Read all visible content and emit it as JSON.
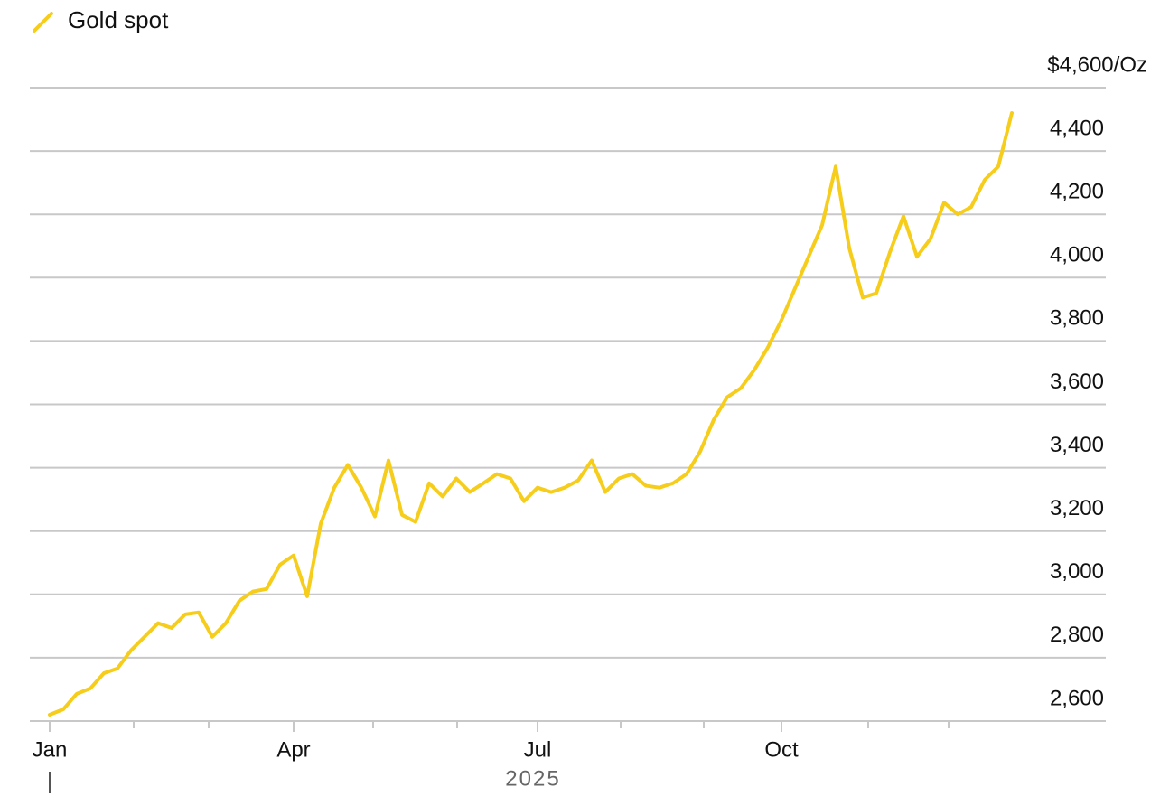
{
  "chart_data": {
    "type": "line",
    "categories": [
      "Jan",
      null,
      null,
      null,
      null,
      null,
      null,
      null,
      null,
      null,
      null,
      null,
      null,
      null,
      null,
      null,
      null,
      null,
      "Apr",
      null,
      null,
      null,
      null,
      null,
      null,
      null,
      null,
      null,
      null,
      null,
      null,
      null,
      null,
      null,
      null,
      null,
      "Jul",
      null,
      null,
      null,
      null,
      null,
      null,
      null,
      null,
      null,
      null,
      null,
      null,
      null,
      null,
      null,
      null,
      null,
      "Oct",
      null,
      null,
      null,
      null,
      null,
      null,
      null,
      null,
      null,
      null,
      null,
      null,
      null,
      null,
      null,
      null,
      null
    ],
    "x_label": "2025",
    "series": [
      {
        "name": "Gold spot",
        "color": "#f7cd1b",
        "values": [
          2620,
          2637,
          2686,
          2703,
          2751,
          2766,
          2823,
          2866,
          2909,
          2894,
          2937,
          2943,
          2866,
          2909,
          2980,
          3009,
          3017,
          3094,
          3123,
          2994,
          3223,
          3337,
          3409,
          3337,
          3246,
          3423,
          3251,
          3229,
          3351,
          3309,
          3366,
          3323,
          3351,
          3380,
          3366,
          3294,
          3337,
          3323,
          3337,
          3360,
          3423,
          3323,
          3366,
          3380,
          3343,
          3337,
          3351,
          3380,
          3451,
          3551,
          3623,
          3651,
          3709,
          3780,
          3866,
          3966,
          4066,
          4166,
          4351,
          4094,
          3937,
          3951,
          4080,
          4194,
          4066,
          4123,
          4237,
          4200,
          4223,
          4309,
          4351,
          4520
        ]
      }
    ],
    "ylim": [
      2600,
      4600
    ],
    "yticks": [
      {
        "value": 2600,
        "label": "2,600"
      },
      {
        "value": 2800,
        "label": "2,800"
      },
      {
        "value": 3000,
        "label": "3,000"
      },
      {
        "value": 3200,
        "label": "3,200"
      },
      {
        "value": 3400,
        "label": "3,400"
      },
      {
        "value": 3600,
        "label": "3,600"
      },
      {
        "value": 3800,
        "label": "3,800"
      },
      {
        "value": 4000,
        "label": "4,000"
      },
      {
        "value": 4200,
        "label": "4,200"
      },
      {
        "value": 4400,
        "label": "4,400"
      },
      {
        "value": 4600,
        "label": "$4,600/Oz"
      }
    ],
    "grid": true,
    "legend": "top-left"
  }
}
